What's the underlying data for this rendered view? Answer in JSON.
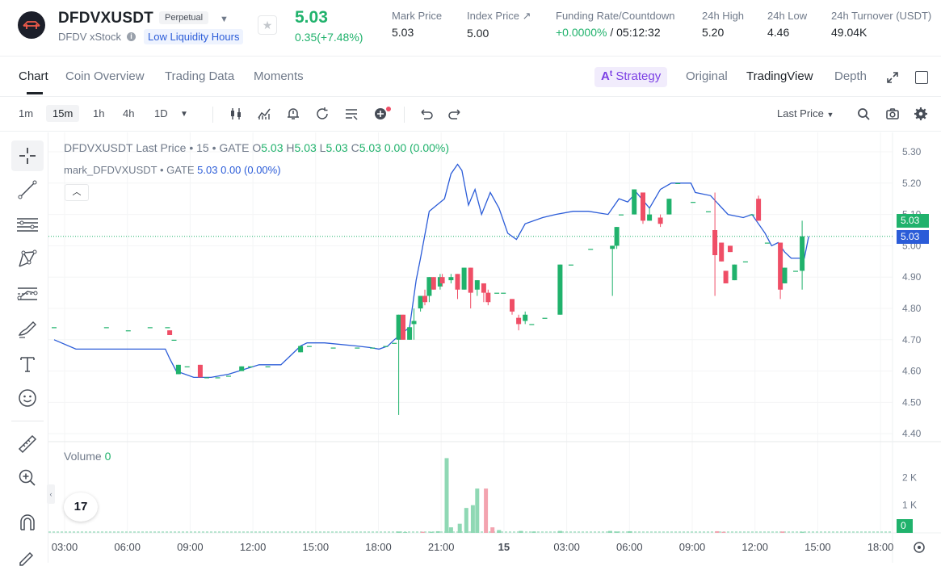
{
  "header": {
    "symbol": "DFDVXUSDT",
    "contract_type": "Perpetual",
    "subname": "DFDV xStock",
    "liquidity_badge": "Low Liquidity Hours",
    "last_price": "5.03",
    "change": "0.35(+7.48%)",
    "stats": [
      {
        "label": "Mark Price",
        "value": "5.03"
      },
      {
        "label": "Index Price ↗",
        "value": "5.00"
      },
      {
        "label": "Funding Rate/Countdown",
        "value_green": "+0.0000%",
        "value_rest": " / 05:12:32"
      },
      {
        "label": "24h High",
        "value": "5.20"
      },
      {
        "label": "24h Low",
        "value": "4.46"
      },
      {
        "label": "24h Turnover (USDT)",
        "value": "49.04K"
      }
    ]
  },
  "tabs": {
    "left": [
      "Chart",
      "Coin Overview",
      "Trading Data",
      "Moments"
    ],
    "strategy": "Strategy",
    "right": [
      "Original",
      "TradingView",
      "Depth"
    ]
  },
  "toolbar": {
    "timeframes": [
      "1m",
      "15m",
      "1h",
      "4h",
      "1D"
    ],
    "selected_timeframe": "15m",
    "price_type": "Last Price"
  },
  "legend": {
    "title": "DFDVXUSDT Last Price • 15 • GATE",
    "o_label": "O",
    "o": "5.03",
    "h_label": "H",
    "h": "5.03",
    "l_label": "L",
    "l": "5.03",
    "c_label": "C",
    "c": "5.03",
    "chg": "0.00 (0.00%)",
    "mark_name": "mark_DFDVXUSDT • GATE",
    "mark_val": "5.03",
    "mark_chg": "0.00 (0.00%)",
    "volume_label": "Volume",
    "volume_val": "0"
  },
  "tv_logo": "17",
  "colors": {
    "up": "#20b26c",
    "down": "#ef4e66",
    "mark": "#2b5cd8",
    "accent": "#7b3fe4"
  },
  "chart_data": {
    "type": "candlestick",
    "y_ticks": [
      "5.30",
      "5.20",
      "5.10",
      "5.00",
      "4.90",
      "4.80",
      "4.70",
      "4.60",
      "4.50",
      "4.40"
    ],
    "ylim": [
      4.4,
      5.3
    ],
    "x_ticks": [
      "03:00",
      "06:00",
      "09:00",
      "12:00",
      "15:00",
      "18:00",
      "21:00",
      "15",
      "03:00",
      "06:00",
      "09:00",
      "12:00",
      "15:00",
      "18:00"
    ],
    "volume_ticks": [
      "2 K",
      "1 K"
    ],
    "last_price_tag": "5.03",
    "mark_price_tag": "5.03",
    "volume_tag": "0",
    "candles": [
      {
        "t": 0,
        "o": 4.74,
        "h": 4.74,
        "l": 4.74,
        "c": 4.74
      },
      {
        "t": 2.4,
        "o": 4.74,
        "h": 4.74,
        "l": 4.74,
        "c": 4.74
      },
      {
        "t": 3.4,
        "o": 4.73,
        "h": 4.73,
        "l": 4.73,
        "c": 4.73
      },
      {
        "t": 4.4,
        "o": 4.74,
        "h": 4.74,
        "l": 4.74,
        "c": 4.74
      },
      {
        "t": 5.2,
        "o": 4.74,
        "h": 4.74,
        "l": 4.74,
        "c": 4.74
      },
      {
        "t": 5.3,
        "o": 4.73,
        "h": 4.73,
        "l": 4.715,
        "c": 4.715
      },
      {
        "t": 5.5,
        "o": 4.7,
        "h": 4.7,
        "l": 4.7,
        "c": 4.7
      },
      {
        "t": 5.7,
        "o": 4.59,
        "h": 4.62,
        "l": 4.59,
        "c": 4.62
      },
      {
        "t": 6.1,
        "o": 4.615,
        "h": 4.615,
        "l": 4.615,
        "c": 4.615
      },
      {
        "t": 6.7,
        "o": 4.62,
        "h": 4.62,
        "l": 4.58,
        "c": 4.58
      },
      {
        "t": 7.0,
        "o": 4.58,
        "h": 4.58,
        "l": 4.58,
        "c": 4.58
      },
      {
        "t": 7.5,
        "o": 4.58,
        "h": 4.58,
        "l": 4.58,
        "c": 4.58
      },
      {
        "t": 8.0,
        "o": 4.585,
        "h": 4.585,
        "l": 4.585,
        "c": 4.585
      },
      {
        "t": 8.6,
        "o": 4.6,
        "h": 4.615,
        "l": 4.6,
        "c": 4.615
      },
      {
        "t": 9.0,
        "o": 4.615,
        "h": 4.615,
        "l": 4.615,
        "c": 4.615
      },
      {
        "t": 9.8,
        "o": 4.615,
        "h": 4.615,
        "l": 4.615,
        "c": 4.615
      },
      {
        "t": 11.3,
        "o": 4.66,
        "h": 4.68,
        "l": 4.66,
        "c": 4.68
      },
      {
        "t": 11.7,
        "o": 4.68,
        "h": 4.68,
        "l": 4.68,
        "c": 4.68
      },
      {
        "t": 12.8,
        "o": 4.675,
        "h": 4.675,
        "l": 4.675,
        "c": 4.675
      },
      {
        "t": 13.9,
        "o": 4.675,
        "h": 4.675,
        "l": 4.675,
        "c": 4.675
      },
      {
        "t": 14.6,
        "o": 4.675,
        "h": 4.675,
        "l": 4.675,
        "c": 4.675
      },
      {
        "t": 15.2,
        "o": 4.68,
        "h": 4.68,
        "l": 4.68,
        "c": 4.68
      },
      {
        "t": 15.6,
        "o": 4.69,
        "h": 4.69,
        "l": 4.69,
        "c": 4.69
      },
      {
        "t": 15.8,
        "o": 4.7,
        "h": 4.78,
        "l": 4.46,
        "c": 4.78
      },
      {
        "t": 16.0,
        "o": 4.78,
        "h": 4.78,
        "l": 4.7,
        "c": 4.7
      },
      {
        "t": 16.3,
        "o": 4.7,
        "h": 4.74,
        "l": 4.7,
        "c": 4.74
      },
      {
        "t": 16.5,
        "o": 4.75,
        "h": 4.8,
        "l": 4.7,
        "c": 4.76
      },
      {
        "t": 16.8,
        "o": 4.8,
        "h": 4.84,
        "l": 4.79,
        "c": 4.84
      },
      {
        "t": 17.0,
        "o": 4.84,
        "h": 4.86,
        "l": 4.81,
        "c": 4.82
      },
      {
        "t": 17.2,
        "o": 4.84,
        "h": 4.9,
        "l": 4.82,
        "c": 4.9
      },
      {
        "t": 17.4,
        "o": 4.9,
        "h": 4.9,
        "l": 4.86,
        "c": 4.86
      },
      {
        "t": 17.7,
        "o": 4.87,
        "h": 4.91,
        "l": 4.86,
        "c": 4.9
      },
      {
        "t": 17.8,
        "o": 4.9,
        "h": 4.91,
        "l": 4.87,
        "c": 4.88
      },
      {
        "t": 18.2,
        "o": 4.89,
        "h": 4.91,
        "l": 4.88,
        "c": 4.9
      },
      {
        "t": 18.5,
        "o": 4.91,
        "h": 4.91,
        "l": 4.83,
        "c": 4.86
      },
      {
        "t": 18.8,
        "o": 4.86,
        "h": 4.93,
        "l": 4.86,
        "c": 4.93
      },
      {
        "t": 19.1,
        "o": 4.93,
        "h": 4.93,
        "l": 4.8,
        "c": 4.85
      },
      {
        "t": 19.4,
        "o": 4.86,
        "h": 4.89,
        "l": 4.84,
        "c": 4.89
      },
      {
        "t": 19.7,
        "o": 4.88,
        "h": 4.88,
        "l": 4.82,
        "c": 4.85
      },
      {
        "t": 19.9,
        "o": 4.85,
        "h": 4.86,
        "l": 4.81,
        "c": 4.82
      },
      {
        "t": 20.3,
        "o": 4.85,
        "h": 4.85,
        "l": 4.85,
        "c": 4.85
      },
      {
        "t": 20.6,
        "o": 4.85,
        "h": 4.85,
        "l": 4.85,
        "c": 4.85
      },
      {
        "t": 21.0,
        "o": 4.83,
        "h": 4.83,
        "l": 4.78,
        "c": 4.79
      },
      {
        "t": 21.3,
        "o": 4.77,
        "h": 4.78,
        "l": 4.73,
        "c": 4.75
      },
      {
        "t": 21.6,
        "o": 4.76,
        "h": 4.79,
        "l": 4.75,
        "c": 4.78
      },
      {
        "t": 21.9,
        "o": 4.75,
        "h": 4.75,
        "l": 4.75,
        "c": 4.75
      },
      {
        "t": 22.5,
        "o": 4.77,
        "h": 4.77,
        "l": 4.77,
        "c": 4.77
      },
      {
        "t": 23.2,
        "o": 4.78,
        "h": 4.94,
        "l": 4.78,
        "c": 4.94
      },
      {
        "t": 23.7,
        "o": 4.94,
        "h": 4.94,
        "l": 4.94,
        "c": 4.94
      },
      {
        "t": 24.6,
        "o": 4.99,
        "h": 4.99,
        "l": 4.99,
        "c": 4.99
      },
      {
        "t": 25.6,
        "o": 4.99,
        "h": 5.0,
        "l": 4.84,
        "c": 5.0
      },
      {
        "t": 25.8,
        "o": 5.0,
        "h": 5.06,
        "l": 4.99,
        "c": 5.06
      },
      {
        "t": 26.0,
        "o": 5.1,
        "h": 5.1,
        "l": 5.1,
        "c": 5.1
      },
      {
        "t": 26.6,
        "o": 5.1,
        "h": 5.18,
        "l": 5.1,
        "c": 5.18
      },
      {
        "t": 27.0,
        "o": 5.17,
        "h": 5.17,
        "l": 5.07,
        "c": 5.08
      },
      {
        "t": 27.3,
        "o": 5.08,
        "h": 5.12,
        "l": 5.08,
        "c": 5.1
      },
      {
        "t": 27.8,
        "o": 5.09,
        "h": 5.1,
        "l": 5.06,
        "c": 5.07
      },
      {
        "t": 28.2,
        "o": 5.1,
        "h": 5.15,
        "l": 5.1,
        "c": 5.15
      },
      {
        "t": 28.6,
        "o": 5.2,
        "h": 5.2,
        "l": 5.2,
        "c": 5.2
      },
      {
        "t": 29.3,
        "o": 5.14,
        "h": 5.14,
        "l": 5.14,
        "c": 5.14
      },
      {
        "t": 30.0,
        "o": 5.11,
        "h": 5.11,
        "l": 5.11,
        "c": 5.11
      },
      {
        "t": 30.3,
        "o": 5.05,
        "h": 5.17,
        "l": 4.84,
        "c": 4.97
      },
      {
        "t": 30.6,
        "o": 5.01,
        "h": 5.01,
        "l": 4.95,
        "c": 4.95
      },
      {
        "t": 30.8,
        "o": 4.92,
        "h": 4.92,
        "l": 4.88,
        "c": 4.88
      },
      {
        "t": 31.0,
        "o": 5.0,
        "h": 5.0,
        "l": 4.98,
        "c": 4.98
      },
      {
        "t": 31.2,
        "o": 4.89,
        "h": 4.94,
        "l": 4.89,
        "c": 4.94
      },
      {
        "t": 31.7,
        "o": 4.95,
        "h": 4.95,
        "l": 4.95,
        "c": 4.95
      },
      {
        "t": 32.0,
        "o": 5.1,
        "h": 5.1,
        "l": 5.1,
        "c": 5.1
      },
      {
        "t": 32.3,
        "o": 5.15,
        "h": 5.16,
        "l": 5.08,
        "c": 5.08
      },
      {
        "t": 32.7,
        "o": 5.01,
        "h": 5.01,
        "l": 5.01,
        "c": 5.01
      },
      {
        "t": 33.3,
        "o": 5.01,
        "h": 5.01,
        "l": 4.83,
        "c": 4.86
      },
      {
        "t": 33.5,
        "o": 4.88,
        "h": 4.93,
        "l": 4.88,
        "c": 4.93
      },
      {
        "t": 34.0,
        "o": 4.92,
        "h": 4.92,
        "l": 4.92,
        "c": 4.92
      },
      {
        "t": 34.3,
        "o": 4.92,
        "h": 5.08,
        "l": 4.86,
        "c": 5.03
      }
    ],
    "mark_line": [
      [
        0,
        4.7
      ],
      [
        1.0,
        4.67
      ],
      [
        4.5,
        4.67
      ],
      [
        5.1,
        4.67
      ],
      [
        5.3,
        4.64
      ],
      [
        5.6,
        4.6
      ],
      [
        6.4,
        4.58
      ],
      [
        7.2,
        4.58
      ],
      [
        8.0,
        4.59
      ],
      [
        9.4,
        4.62
      ],
      [
        10.4,
        4.62
      ],
      [
        11.3,
        4.68
      ],
      [
        11.6,
        4.69
      ],
      [
        12.4,
        4.69
      ],
      [
        13.9,
        4.68
      ],
      [
        14.5,
        4.675
      ],
      [
        14.9,
        4.67
      ],
      [
        15.3,
        4.68
      ],
      [
        15.6,
        4.7
      ],
      [
        16.3,
        4.74
      ],
      [
        16.6,
        4.89
      ],
      [
        16.8,
        4.96
      ],
      [
        17.2,
        5.11
      ],
      [
        17.9,
        5.15
      ],
      [
        18.2,
        5.23
      ],
      [
        18.5,
        5.26
      ],
      [
        18.7,
        5.24
      ],
      [
        19.0,
        5.13
      ],
      [
        19.3,
        5.18
      ],
      [
        19.6,
        5.1
      ],
      [
        20.0,
        5.17
      ],
      [
        20.4,
        5.12
      ],
      [
        20.8,
        5.04
      ],
      [
        21.2,
        5.02
      ],
      [
        21.6,
        5.07
      ],
      [
        22.4,
        5.09
      ],
      [
        23.0,
        5.1
      ],
      [
        23.8,
        5.11
      ],
      [
        24.5,
        5.11
      ],
      [
        25.4,
        5.1
      ],
      [
        25.9,
        5.15
      ],
      [
        26.3,
        5.14
      ],
      [
        26.7,
        5.17
      ],
      [
        27.3,
        5.12
      ],
      [
        27.8,
        5.18
      ],
      [
        28.3,
        5.2
      ],
      [
        29.2,
        5.2
      ],
      [
        29.4,
        5.17
      ],
      [
        30.1,
        5.16
      ],
      [
        30.5,
        5.13
      ],
      [
        30.9,
        5.1
      ],
      [
        31.6,
        5.09
      ],
      [
        32.0,
        5.1
      ],
      [
        32.6,
        5.04
      ],
      [
        32.9,
        5.0
      ],
      [
        33.2,
        5.01
      ],
      [
        33.5,
        4.98
      ],
      [
        33.8,
        4.96
      ],
      [
        34.4,
        4.96
      ],
      [
        34.6,
        5.03
      ]
    ],
    "volume": [
      {
        "t": 15.8,
        "v": 50,
        "up": true
      },
      {
        "t": 16.1,
        "v": 30,
        "up": true
      },
      {
        "t": 16.9,
        "v": 40,
        "up": false
      },
      {
        "t": 17.3,
        "v": 40,
        "up": true
      },
      {
        "t": 17.6,
        "v": 60,
        "up": true
      },
      {
        "t": 18.0,
        "v": 2700,
        "up": true
      },
      {
        "t": 18.2,
        "v": 200,
        "up": true
      },
      {
        "t": 18.6,
        "v": 330,
        "up": true
      },
      {
        "t": 18.9,
        "v": 900,
        "up": true
      },
      {
        "t": 19.2,
        "v": 1000,
        "up": true
      },
      {
        "t": 19.4,
        "v": 1600,
        "up": true
      },
      {
        "t": 19.8,
        "v": 1600,
        "up": false
      },
      {
        "t": 20.1,
        "v": 200,
        "up": false
      },
      {
        "t": 20.4,
        "v": 100,
        "up": true
      },
      {
        "t": 21.4,
        "v": 70,
        "up": true
      },
      {
        "t": 22.0,
        "v": 50,
        "up": true
      },
      {
        "t": 23.2,
        "v": 70,
        "up": true
      },
      {
        "t": 25.5,
        "v": 70,
        "up": true
      },
      {
        "t": 25.8,
        "v": 50,
        "up": true
      },
      {
        "t": 26.4,
        "v": 60,
        "up": true
      },
      {
        "t": 30.4,
        "v": 60,
        "up": false
      },
      {
        "t": 30.7,
        "v": 40,
        "up": false
      },
      {
        "t": 33.4,
        "v": 50,
        "up": false
      },
      {
        "t": 34.3,
        "v": 40,
        "up": true
      }
    ]
  }
}
